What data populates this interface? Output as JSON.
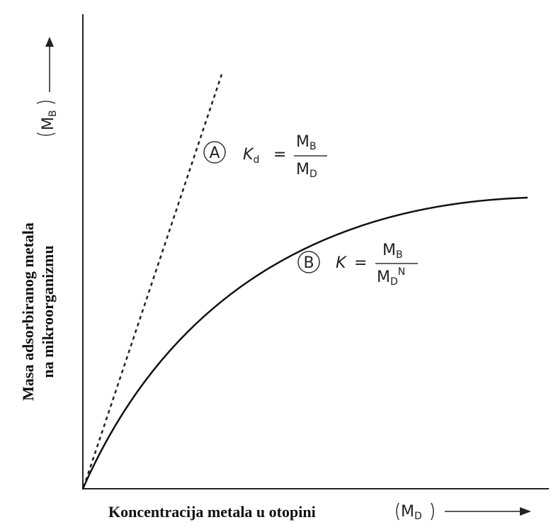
{
  "axes": {
    "x_label": "Koncentracija metala u otopini",
    "x_symbol": {
      "letter": "M",
      "subscript": "D"
    },
    "y_label": [
      "Masa adsorbiranog metala",
      "na mikroorganizmu"
    ],
    "y_symbol": {
      "letter": "M",
      "subscript": "B"
    }
  },
  "curves": [
    {
      "marker": "A",
      "formula": {
        "lhs": "K",
        "lhs_subscript": "d",
        "equals": "=",
        "numerator": {
          "letter": "M",
          "subscript": "B"
        },
        "denominator": {
          "letter": "M",
          "subscript": "D"
        }
      }
    },
    {
      "marker": "B",
      "formula": {
        "lhs": "K",
        "equals": "=",
        "numerator": {
          "letter": "M",
          "subscript": "B"
        },
        "denominator": {
          "letter": "M",
          "subscript": "D",
          "superscript": "N"
        }
      }
    }
  ]
}
